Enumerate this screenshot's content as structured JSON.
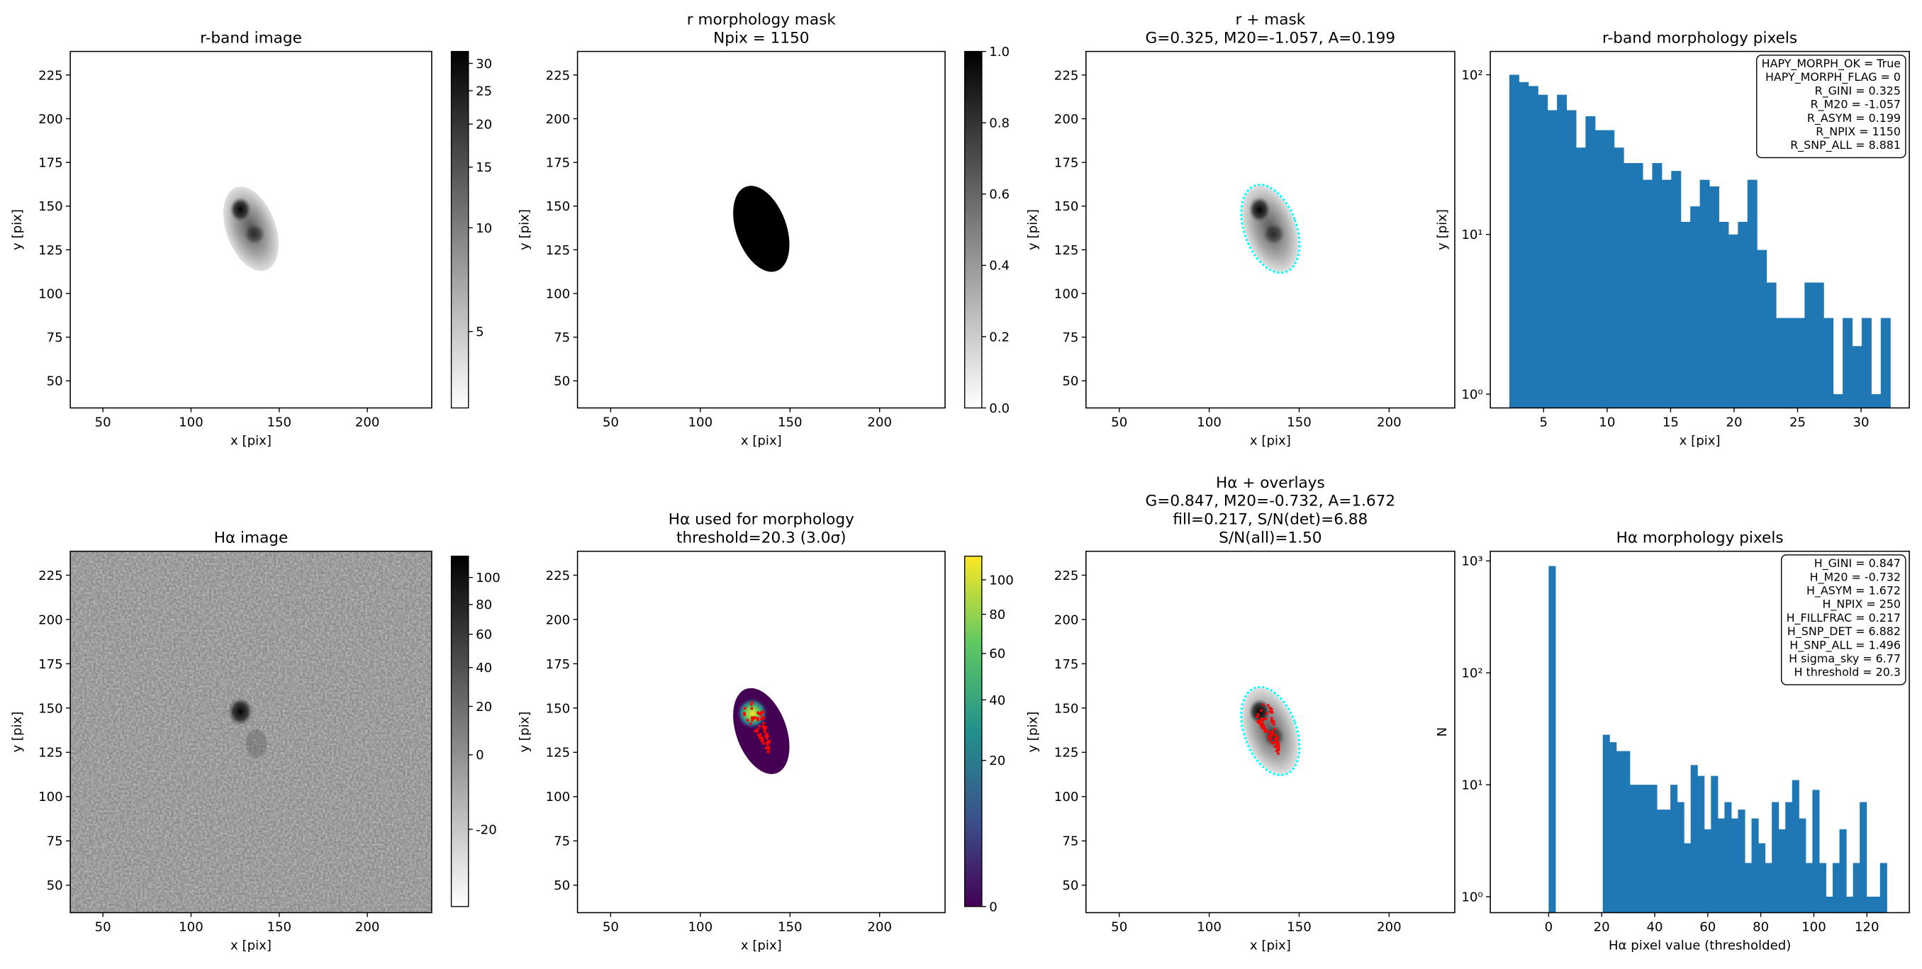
{
  "chart_data": [
    {
      "type": "image",
      "title": [
        "r-band image"
      ],
      "xlabel": "x [pix]",
      "ylabel": "y [pix]",
      "xlim": [
        31.5,
        236.5
      ],
      "ylim": [
        34.5,
        238.5
      ],
      "xticks": [
        50,
        100,
        150,
        200
      ],
      "yticks": [
        50,
        75,
        100,
        125,
        150,
        175,
        200,
        225
      ],
      "colorbar": {
        "cmap": "gray_r",
        "scale": "log",
        "lim": [
          3,
          32.5
        ],
        "ticks": [
          5,
          10,
          15,
          20,
          25,
          30
        ]
      }
    },
    {
      "type": "image",
      "title": [
        "r morphology mask",
        "Npix = 1150"
      ],
      "xlabel": "x [pix]",
      "ylabel": "y [pix]",
      "xlim": [
        31.5,
        236.5
      ],
      "ylim": [
        34.5,
        238.5
      ],
      "xticks": [
        50,
        100,
        150,
        200
      ],
      "yticks": [
        50,
        75,
        100,
        125,
        150,
        175,
        200,
        225
      ],
      "colorbar": {
        "cmap": "gray_r",
        "scale": "linear",
        "lim": [
          0,
          1
        ],
        "ticks": [
          {
            "value": 0,
            "label": "0.0"
          },
          0.2,
          0.4,
          0.6,
          0.8,
          {
            "value": 1,
            "label": "1.0"
          }
        ]
      }
    },
    {
      "type": "image",
      "title": [
        "r + mask",
        "G=0.325, M20=-1.057, A=0.199"
      ],
      "xlabel": "x [pix]",
      "ylabel": "y [pix]",
      "xlim": [
        31.5,
        236.5
      ],
      "ylim": [
        34.5,
        238.5
      ],
      "xticks": [
        50,
        100,
        150,
        200
      ],
      "yticks": [
        50,
        75,
        100,
        125,
        150,
        175,
        200,
        225
      ],
      "contour_colors": [
        "#00ffff"
      ]
    },
    {
      "type": "histogram",
      "title": [
        "r-band morphology pixels"
      ],
      "xlabel": "x [pix]",
      "ylabel": "y [pix]",
      "color": "#1f77b4",
      "log_y": true,
      "xlim": [
        0.8,
        33.8
      ],
      "ylim": [
        0.82,
        140
      ],
      "xticks": [
        5,
        10,
        15,
        20,
        25,
        30
      ],
      "yticks": [
        {
          "value": 1,
          "label": "10⁰"
        },
        {
          "value": 10,
          "label": "10¹"
        },
        {
          "value": 100,
          "label": "10²"
        }
      ],
      "bins": [
        2.3,
        3.05,
        3.8,
        4.55,
        5.3,
        6.05,
        6.8,
        7.55,
        8.3,
        9.05,
        9.8,
        10.55,
        11.3,
        12.05,
        12.8,
        13.55,
        14.3,
        15.05,
        15.8,
        16.55,
        17.3,
        18.05,
        18.8,
        19.55,
        20.3,
        21.05,
        21.8,
        22.55,
        23.3,
        24.05,
        24.8,
        25.55,
        26.3,
        27.05,
        27.8,
        28.55,
        29.3,
        30.05,
        30.8,
        31.55,
        32.3
      ],
      "counts": [
        100,
        90,
        85,
        75,
        60,
        75,
        60,
        35,
        55,
        45,
        45,
        35,
        28,
        28,
        22,
        28,
        22,
        25,
        12,
        15,
        22,
        20,
        12,
        10,
        12,
        22,
        8,
        5,
        3,
        3,
        3,
        5,
        5,
        3,
        1,
        3,
        2,
        3,
        1,
        3
      ],
      "annotation": [
        "HAPY_MORPH_OK = True",
        "HAPY_MORPH_FLAG = 0",
        "R_GINI = 0.325",
        "R_M20 = -1.057",
        "R_ASYM = 0.199",
        "R_NPIX = 1150",
        "R_SNP_ALL = 8.881"
      ]
    },
    {
      "type": "image",
      "title": [
        "Hα image"
      ],
      "xlabel": "x [pix]",
      "ylabel": "y [pix]",
      "xlim": [
        31.5,
        236.5
      ],
      "ylim": [
        34.5,
        238.5
      ],
      "xticks": [
        50,
        100,
        150,
        200
      ],
      "yticks": [
        50,
        75,
        100,
        125,
        150,
        175,
        200,
        225
      ],
      "colorbar": {
        "cmap": "gray_r",
        "scale": "sqrt",
        "lim": [
          -27,
          117
        ],
        "ticks": [
          -20,
          0,
          20,
          40,
          60,
          80,
          100
        ]
      }
    },
    {
      "type": "image",
      "title": [
        "Hα used for morphology",
        "threshold=20.3 (3.0σ)"
      ],
      "xlabel": "x [pix]",
      "ylabel": "y [pix]",
      "xlim": [
        31.5,
        236.5
      ],
      "ylim": [
        34.5,
        238.5
      ],
      "xticks": [
        50,
        100,
        150,
        200
      ],
      "yticks": [
        50,
        75,
        100,
        125,
        150,
        175,
        200,
        225
      ],
      "colorbar": {
        "cmap": "viridis",
        "scale": "sqrt",
        "lim": [
          0,
          115
        ],
        "ticks": [
          0,
          20,
          40,
          60,
          80,
          100
        ]
      },
      "contour_colors": [
        "#ff0000"
      ]
    },
    {
      "type": "image",
      "title": [
        "Hα + overlays",
        "G=0.847, M20=-0.732, A=1.672",
        "fill=0.217, S/N(det)=6.88",
        "S/N(all)=1.50"
      ],
      "xlabel": "x [pix]",
      "ylabel": "y [pix]",
      "xlim": [
        31.5,
        236.5
      ],
      "ylim": [
        34.5,
        238.5
      ],
      "xticks": [
        50,
        100,
        150,
        200
      ],
      "yticks": [
        50,
        75,
        100,
        125,
        150,
        175,
        200,
        225
      ],
      "contour_colors": [
        "#00ffff",
        "#ff0000"
      ]
    },
    {
      "type": "histogram",
      "title": [
        "Hα morphology pixels"
      ],
      "xlabel": "Hα pixel value (thresholded)",
      "ylabel": "N",
      "color": "#1f77b4",
      "log_y": true,
      "xlim": [
        -22,
        136
      ],
      "ylim": [
        0.72,
        1220
      ],
      "xticks": [
        0,
        20,
        40,
        60,
        80,
        100,
        120
      ],
      "yticks": [
        {
          "value": 1,
          "label": "10⁰"
        },
        {
          "value": 10,
          "label": "10¹"
        },
        {
          "value": 100,
          "label": "10²"
        },
        {
          "value": 1000,
          "label": "10³"
        }
      ],
      "bins": [
        0,
        2.55,
        5.1,
        7.65,
        10.2,
        12.75,
        15.3,
        17.85,
        20.4,
        22.95,
        25.5,
        28.05,
        30.6,
        33.15,
        35.7,
        38.25,
        40.8,
        43.35,
        45.9,
        48.45,
        51,
        53.55,
        56.1,
        58.65,
        61.2,
        63.75,
        66.3,
        68.85,
        71.4,
        73.95,
        76.5,
        79.05,
        81.6,
        84.15,
        86.7,
        89.25,
        91.8,
        94.35,
        96.9,
        99.45,
        102,
        104.55,
        107.1,
        109.65,
        112.2,
        114.75,
        117.3,
        119.85,
        122.4,
        124.95,
        127.5
      ],
      "counts": [
        900,
        0,
        0,
        0,
        0,
        0,
        0,
        0,
        28,
        24,
        20,
        20,
        10,
        10,
        10,
        10,
        6,
        6,
        10,
        7,
        3,
        15,
        12,
        4,
        12,
        5,
        7,
        5,
        6,
        2,
        5,
        3,
        2,
        7,
        4,
        7,
        11,
        5,
        2,
        9,
        2,
        1,
        2,
        4,
        1,
        2,
        7,
        1,
        1,
        2
      ],
      "annotation": [
        "H_GINI = 0.847",
        "H_M20 = -0.732",
        "H_ASYM = 1.672",
        "H_NPIX = 250",
        "H_FILLFRAC = 0.217",
        "H_SNP_DET = 6.882",
        "H_SNP_ALL = 1.496",
        "H sigma_sky = 6.77",
        "H threshold = 20.3"
      ]
    }
  ]
}
